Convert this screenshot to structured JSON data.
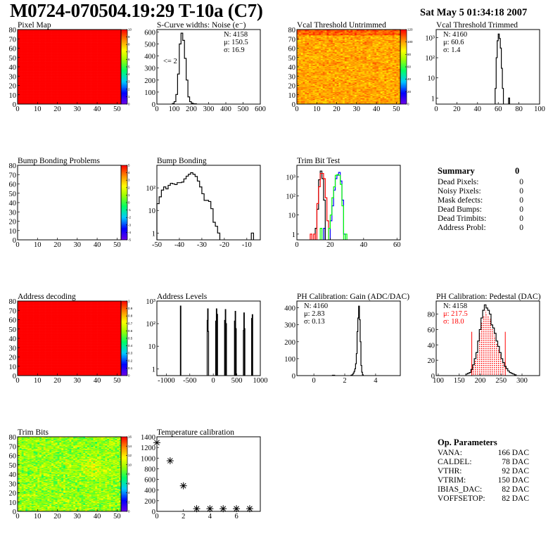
{
  "header": {
    "title": "M0724-070504.19:29 T-10a (C7)",
    "date": "Sat May  5 01:34:18 2007"
  },
  "summary": {
    "title": "Summary",
    "total": "0",
    "rows": [
      {
        "label": "Dead Pixels:",
        "value": "0"
      },
      {
        "label": "Noisy Pixels:",
        "value": "0"
      },
      {
        "label": "Mask defects:",
        "value": "0"
      },
      {
        "label": "Dead Bumps:",
        "value": "0"
      },
      {
        "label": "Dead Trimbits:",
        "value": "0"
      },
      {
        "label": "Address Probl:",
        "value": "0"
      }
    ]
  },
  "op_parameters": {
    "title": "Op. Parameters",
    "rows": [
      {
        "label": "VANA:",
        "value": "166 DAC"
      },
      {
        "label": "CALDEL:",
        "value": "78 DAC"
      },
      {
        "label": "VTHR:",
        "value": "92 DAC"
      },
      {
        "label": "VTRIM:",
        "value": "150 DAC"
      },
      {
        "label": "IBIAS_DAC:",
        "value": "82 DAC"
      },
      {
        "label": "VOFFSETOP:",
        "value": "82 DAC"
      }
    ]
  },
  "colors": {
    "frame": "#000000",
    "red": "#ff0000",
    "green": "#00ff00",
    "blue": "#0000ff",
    "black": "#000000"
  },
  "chart_data": [
    {
      "id": "pixel-map",
      "type": "heatmap",
      "title": "Pixel Map",
      "xlim": [
        0,
        52
      ],
      "ylim": [
        0,
        80
      ],
      "xticks": [
        0,
        10,
        20,
        30,
        40,
        50
      ],
      "yticks": [
        0,
        10,
        20,
        30,
        40,
        50,
        60,
        70,
        80
      ],
      "zlim": [
        0,
        10
      ],
      "zticks": [
        "0",
        "1",
        "2",
        "3",
        "4",
        "5",
        "6",
        "7",
        "8",
        "9",
        "10"
      ],
      "cells": {
        "nx": 52,
        "ny": 80,
        "mean": 10,
        "spread": 0
      }
    },
    {
      "id": "s-curve-widths",
      "type": "bar",
      "subtype": "histogram",
      "title": "S-Curve widths: Noise (e⁻)",
      "xlim": [
        0,
        600
      ],
      "ylim": [
        0,
        620
      ],
      "xticks": [
        0,
        100,
        200,
        300,
        400,
        500,
        600
      ],
      "yticks": [
        0,
        100,
        200,
        300,
        400,
        500,
        600
      ],
      "bin_width": 10,
      "bins": [
        [
          90,
          5
        ],
        [
          100,
          20
        ],
        [
          110,
          80
        ],
        [
          120,
          250
        ],
        [
          130,
          500
        ],
        [
          140,
          590
        ],
        [
          150,
          530
        ],
        [
          160,
          380
        ],
        [
          170,
          200
        ],
        [
          180,
          60
        ],
        [
          190,
          20
        ],
        [
          200,
          8
        ],
        [
          210,
          3
        ],
        [
          220,
          2
        ]
      ],
      "stats": [
        "N: 4158",
        "μ: 150.5",
        "σ: 16.9"
      ],
      "annotation": "<= 2"
    },
    {
      "id": "vcal-threshold-untrimmed",
      "type": "heatmap",
      "title": "Vcal Threshold Untrimmed",
      "xlim": [
        0,
        52
      ],
      "ylim": [
        0,
        80
      ],
      "xticks": [
        0,
        10,
        20,
        30,
        40,
        50
      ],
      "yticks": [
        0,
        10,
        20,
        30,
        40,
        50,
        60,
        70,
        80
      ],
      "zlim": [
        0,
        128
      ],
      "zticks": [
        "0",
        "20",
        "40",
        "60",
        "80",
        "100",
        "120"
      ],
      "cells": {
        "nx": 52,
        "ny": 80,
        "mean": 106,
        "spread": 7,
        "top_rows_mean": 116
      }
    },
    {
      "id": "vcal-threshold-trimmed",
      "type": "bar",
      "subtype": "histogram",
      "title": "Vcal Threshold Trimmed",
      "log_y": true,
      "xlim": [
        0,
        100
      ],
      "ylim": [
        0.5,
        2500
      ],
      "xticks": [
        0,
        20,
        40,
        60,
        80,
        100
      ],
      "yticks": [
        1,
        10,
        100,
        1000
      ],
      "ytick_labels": [
        "1",
        "10",
        "10²",
        "10³"
      ],
      "bin_width": 1,
      "bins": [
        [
          57,
          3
        ],
        [
          58,
          100
        ],
        [
          59,
          700
        ],
        [
          60,
          1500
        ],
        [
          61,
          900
        ],
        [
          62,
          300
        ],
        [
          63,
          30
        ],
        [
          64,
          3
        ],
        [
          70,
          1
        ]
      ],
      "stats": [
        "N: 4160",
        "μ: 60.6",
        "σ:  1.4"
      ]
    },
    {
      "id": "bump-bonding-problems",
      "type": "heatmap",
      "title": "Bump Bonding Problems",
      "xlim": [
        0,
        52
      ],
      "ylim": [
        0,
        80
      ],
      "xticks": [
        0,
        10,
        20,
        30,
        40,
        50
      ],
      "yticks": [
        0,
        10,
        20,
        30,
        40,
        50,
        60,
        70,
        80
      ],
      "zlim": [
        -5,
        5
      ],
      "zticks": [
        "-5",
        "-4",
        "-3",
        "-2",
        "-1",
        "0",
        "1",
        "2",
        "3",
        "4",
        "5"
      ],
      "cells": {
        "nx": 52,
        "ny": 80,
        "empty": true
      }
    },
    {
      "id": "bump-bonding",
      "type": "bar",
      "subtype": "histogram",
      "title": "Bump Bonding",
      "log_y": true,
      "xlim": [
        -50,
        -4
      ],
      "ylim": [
        0.5,
        1000
      ],
      "xticks": [
        -50,
        -40,
        -30,
        -20,
        -10
      ],
      "yticks": [
        1,
        10,
        100
      ],
      "ytick_labels": [
        "1",
        "10",
        "10²"
      ],
      "bin_width": 1,
      "bins": [
        [
          -50,
          20
        ],
        [
          -49,
          40
        ],
        [
          -48,
          80
        ],
        [
          -47,
          110
        ],
        [
          -46,
          90
        ],
        [
          -45,
          130
        ],
        [
          -44,
          160
        ],
        [
          -43,
          150
        ],
        [
          -42,
          140
        ],
        [
          -41,
          170
        ],
        [
          -40,
          170
        ],
        [
          -39,
          180
        ],
        [
          -38,
          250
        ],
        [
          -37,
          330
        ],
        [
          -36,
          400
        ],
        [
          -35,
          470
        ],
        [
          -34,
          400
        ],
        [
          -33,
          320
        ],
        [
          -32,
          200
        ],
        [
          -31,
          110
        ],
        [
          -30,
          55
        ],
        [
          -29,
          28
        ],
        [
          -28,
          28
        ],
        [
          -27,
          25
        ],
        [
          -26,
          12
        ],
        [
          -25,
          3
        ],
        [
          -24,
          2
        ],
        [
          -23,
          1
        ],
        [
          -8,
          1
        ]
      ]
    },
    {
      "id": "trim-bit-test",
      "type": "bar",
      "subtype": "histogram",
      "title": "Trim Bit Test",
      "log_y": true,
      "xlim": [
        0,
        62
      ],
      "ylim": [
        0.5,
        4000
      ],
      "xticks": [
        0,
        20,
        40,
        60
      ],
      "yticks": [
        1,
        10,
        100,
        1000
      ],
      "ytick_labels": [
        "1",
        "10",
        "10²",
        "10³"
      ],
      "bin_width": 1,
      "series": [
        {
          "color": "#0000ff",
          "bins": [
            [
              16,
              2
            ],
            [
              20,
              5
            ],
            [
              21,
              30
            ],
            [
              22,
              200
            ],
            [
              23,
              800
            ],
            [
              24,
              1200
            ],
            [
              25,
              1700
            ],
            [
              26,
              600
            ],
            [
              27,
              60
            ],
            [
              28,
              1
            ]
          ]
        },
        {
          "color": "#000000",
          "bins": [
            [
              11,
              2
            ],
            [
              12,
              20
            ],
            [
              13,
              700
            ],
            [
              14,
              2000
            ],
            [
              15,
              800
            ],
            [
              16,
              60
            ]
          ]
        },
        {
          "color": "#ff0000",
          "bins": [
            [
              8,
              1
            ],
            [
              10,
              1
            ],
            [
              12,
              40
            ],
            [
              13,
              300
            ],
            [
              14,
              1500
            ],
            [
              15,
              1500
            ],
            [
              16,
              800
            ],
            [
              17,
              80
            ],
            [
              18,
              5
            ]
          ]
        },
        {
          "color": "#00ff00",
          "bins": [
            [
              14,
              2
            ],
            [
              19,
              2
            ],
            [
              20,
              10
            ],
            [
              21,
              80
            ],
            [
              22,
              300
            ],
            [
              23,
              1200
            ],
            [
              24,
              1300
            ],
            [
              25,
              1200
            ],
            [
              26,
              400
            ],
            [
              27,
              30
            ],
            [
              29,
              1
            ]
          ]
        }
      ]
    },
    {
      "id": "address-decoding",
      "type": "heatmap",
      "title": "Address decoding",
      "xlim": [
        0,
        52
      ],
      "ylim": [
        0,
        80
      ],
      "xticks": [
        0,
        10,
        20,
        30,
        40,
        50
      ],
      "yticks": [
        0,
        10,
        20,
        30,
        40,
        50,
        60,
        70,
        80
      ],
      "zlim": [
        0,
        1
      ],
      "zticks": [
        "0",
        "0.1",
        "0.2",
        "0.3",
        "0.4",
        "0.5",
        "0.6",
        "0.7",
        "0.8",
        "0.9",
        "1"
      ],
      "cells": {
        "nx": 52,
        "ny": 80,
        "mean": 1,
        "spread": 0
      }
    },
    {
      "id": "address-levels",
      "type": "bar",
      "subtype": "histogram",
      "title": "Address Levels",
      "log_y": true,
      "xlim": [
        -1200,
        1000
      ],
      "ylim": [
        0.5,
        1000
      ],
      "xticks": [
        -1000,
        -500,
        0,
        500,
        1000
      ],
      "yticks": [
        1,
        10,
        100,
        1000
      ],
      "ytick_labels": [
        "1",
        "10",
        "10²",
        "10³"
      ],
      "bin_width": 10,
      "bins": [
        [
          -700,
          600
        ],
        [
          -130,
          140
        ],
        [
          -120,
          450
        ],
        [
          -110,
          45
        ],
        [
          50,
          130
        ],
        [
          65,
          450
        ],
        [
          80,
          260
        ],
        [
          240,
          140
        ],
        [
          255,
          420
        ],
        [
          270,
          100
        ],
        [
          450,
          130
        ],
        [
          465,
          350
        ],
        [
          478,
          60
        ],
        [
          640,
          50
        ],
        [
          650,
          300
        ],
        [
          662,
          60
        ],
        [
          815,
          170
        ],
        [
          828,
          250
        ]
      ]
    },
    {
      "id": "ph-calibration-gain",
      "type": "bar",
      "subtype": "histogram",
      "title": "PH Calibration: Gain (ADC/DAC)",
      "xlim": [
        -1.1,
        5.6
      ],
      "ylim": [
        0,
        440
      ],
      "xticks": [
        0,
        2,
        4
      ],
      "yticks": [
        0,
        100,
        200,
        300,
        400
      ],
      "bin_width": 0.05,
      "bins": [
        [
          1.2,
          2
        ],
        [
          1.3,
          2
        ],
        [
          2.4,
          2
        ],
        [
          2.45,
          4
        ],
        [
          2.5,
          8
        ],
        [
          2.55,
          15
        ],
        [
          2.6,
          25
        ],
        [
          2.65,
          40
        ],
        [
          2.7,
          70
        ],
        [
          2.75,
          130
        ],
        [
          2.8,
          260
        ],
        [
          2.85,
          340
        ],
        [
          2.9,
          410
        ],
        [
          2.95,
          330
        ],
        [
          3.0,
          200
        ],
        [
          3.05,
          60
        ],
        [
          3.1,
          20
        ],
        [
          3.15,
          5
        ]
      ],
      "stats": [
        "N: 4160",
        "μ: 2.83",
        "σ: 0.13"
      ]
    },
    {
      "id": "ph-calibration-pedestal",
      "type": "bar",
      "subtype": "histogram",
      "title": "PH Calibration: Pedestal (DAC)",
      "xlim": [
        95,
        342
      ],
      "ylim": [
        0,
        97
      ],
      "xticks": [
        100,
        150,
        200,
        250,
        300
      ],
      "yticks": [
        0,
        20,
        40,
        60,
        80
      ],
      "bin_width": 4,
      "bins": [
        [
          166,
          2
        ],
        [
          170,
          3
        ],
        [
          174,
          4
        ],
        [
          178,
          8
        ],
        [
          182,
          14
        ],
        [
          186,
          22
        ],
        [
          190,
          30
        ],
        [
          194,
          45
        ],
        [
          198,
          60
        ],
        [
          202,
          75
        ],
        [
          206,
          85
        ],
        [
          210,
          92
        ],
        [
          214,
          88
        ],
        [
          218,
          85
        ],
        [
          222,
          80
        ],
        [
          226,
          66
        ],
        [
          230,
          62
        ],
        [
          234,
          55
        ],
        [
          238,
          45
        ],
        [
          242,
          38
        ],
        [
          246,
          30
        ],
        [
          250,
          22
        ],
        [
          254,
          17
        ],
        [
          258,
          12
        ],
        [
          262,
          9
        ],
        [
          266,
          6
        ],
        [
          270,
          4
        ],
        [
          274,
          3
        ],
        [
          278,
          2
        ],
        [
          282,
          1
        ]
      ],
      "fill_range": [
        180,
        260
      ],
      "fill_color": "#ff0000",
      "stats": [
        "N: 4158",
        "μ: 217.5",
        "σ: 18.0"
      ]
    },
    {
      "id": "trim-bits",
      "type": "heatmap",
      "title": "Trim Bits",
      "xlim": [
        0,
        52
      ],
      "ylim": [
        0,
        80
      ],
      "xticks": [
        0,
        10,
        20,
        30,
        40,
        50
      ],
      "yticks": [
        0,
        10,
        20,
        30,
        40,
        50,
        60,
        70,
        80
      ],
      "zlim": [
        0,
        16
      ],
      "zticks": [
        "0",
        "2",
        "4",
        "6",
        "8",
        "10",
        "12",
        "14",
        "16"
      ],
      "cells": {
        "nx": 52,
        "ny": 80,
        "mean": 9.5,
        "spread": 1.5
      }
    },
    {
      "id": "temperature-calibration",
      "type": "scatter",
      "title": "Temperature calibration",
      "xlim": [
        0,
        7.8
      ],
      "ylim": [
        0,
        1400
      ],
      "xticks": [
        0,
        2,
        4,
        6
      ],
      "yticks": [
        0,
        200,
        400,
        600,
        800,
        1000,
        1200,
        1400
      ],
      "marker": "star",
      "points": [
        [
          0,
          1290
        ],
        [
          1,
          950
        ],
        [
          2,
          480
        ],
        [
          3,
          50
        ],
        [
          4,
          50
        ],
        [
          5,
          50
        ],
        [
          6,
          50
        ],
        [
          7,
          50
        ]
      ]
    }
  ]
}
